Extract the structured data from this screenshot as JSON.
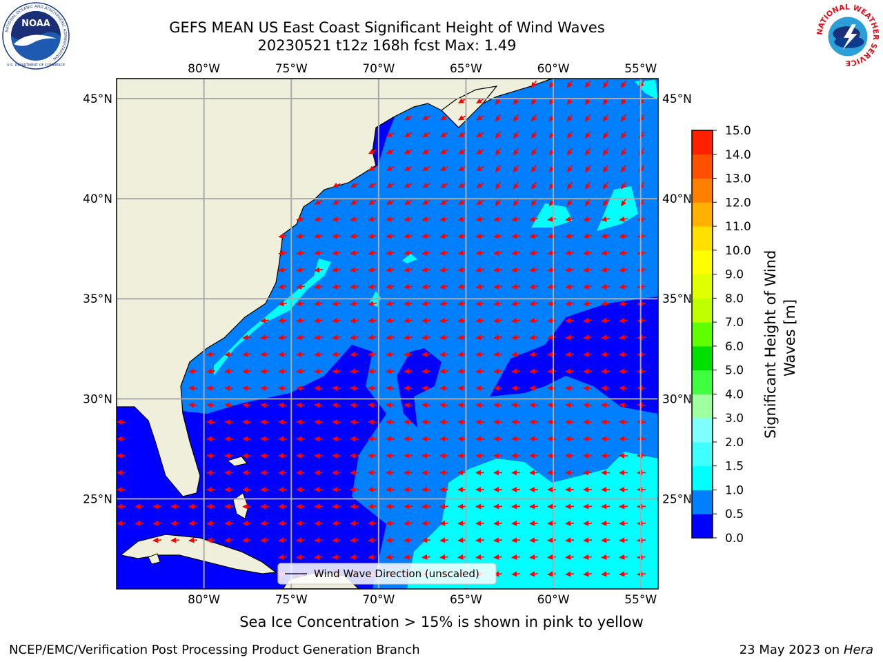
{
  "header": {
    "title_line1": "GEFS MEAN US East Coast Significant Height of Wind Waves",
    "title_line2": "20230521 t12z 168h fcst   Max: 1.49"
  },
  "logos": {
    "left": "noaa-logo",
    "right": "national-weather-service-logo",
    "noaa_text": "NOAA",
    "nws_ring_text": "NATIONAL WEATHER SERVICE",
    "noaa_ring_text": "NATIONAL OCEANIC AND ATMOSPHERIC ADMINISTRATION",
    "noaa_dept_text": "U.S. DEPARTMENT OF COMMERCE"
  },
  "map": {
    "lon_range": [
      -85,
      -54
    ],
    "lat_range": [
      20.5,
      46
    ],
    "lon_ticks": [
      "80°W",
      "75°W",
      "70°W",
      "65°W",
      "60°W",
      "55°W"
    ],
    "lat_ticks": [
      "45°N",
      "40°N",
      "35°N",
      "30°N",
      "25°N"
    ],
    "grid": true,
    "land_color": "#efefdc",
    "arrow_color": "#ff0000",
    "legend_text": "Wind Wave Direction (unscaled)",
    "legend_placement": "bottom-center"
  },
  "colorbar": {
    "label": "Significant Height of Wind Waves [m]",
    "label_line1": "Significant Height of Wind",
    "label_line2": "Waves [m]",
    "tick_labels": [
      "0.0",
      "0.5",
      "1.0",
      "1.5",
      "2.0",
      "3.0",
      "4.0",
      "5.0",
      "6.0",
      "7.0",
      "8.0",
      "9.0",
      "10.0",
      "11.0",
      "12.0",
      "13.0",
      "14.0",
      "15.0"
    ],
    "colors": [
      "#0000ff",
      "#0080ff",
      "#00ffff",
      "#40ffff",
      "#80ffff",
      "#a0ffa0",
      "#40ff40",
      "#00e000",
      "#60ff00",
      "#c0ff00",
      "#e0ff00",
      "#ffff00",
      "#ffe000",
      "#ffb000",
      "#ff8000",
      "#ff5000",
      "#ff2000",
      "#ff0000"
    ]
  },
  "footer": {
    "ice_note": "Sea Ice Concentration > 15% is shown in pink to yellow",
    "left": "NCEP/EMC/Verification Post Processing Product Generation Branch",
    "right_date": "23 May 2023 on",
    "right_host": "Hera"
  }
}
